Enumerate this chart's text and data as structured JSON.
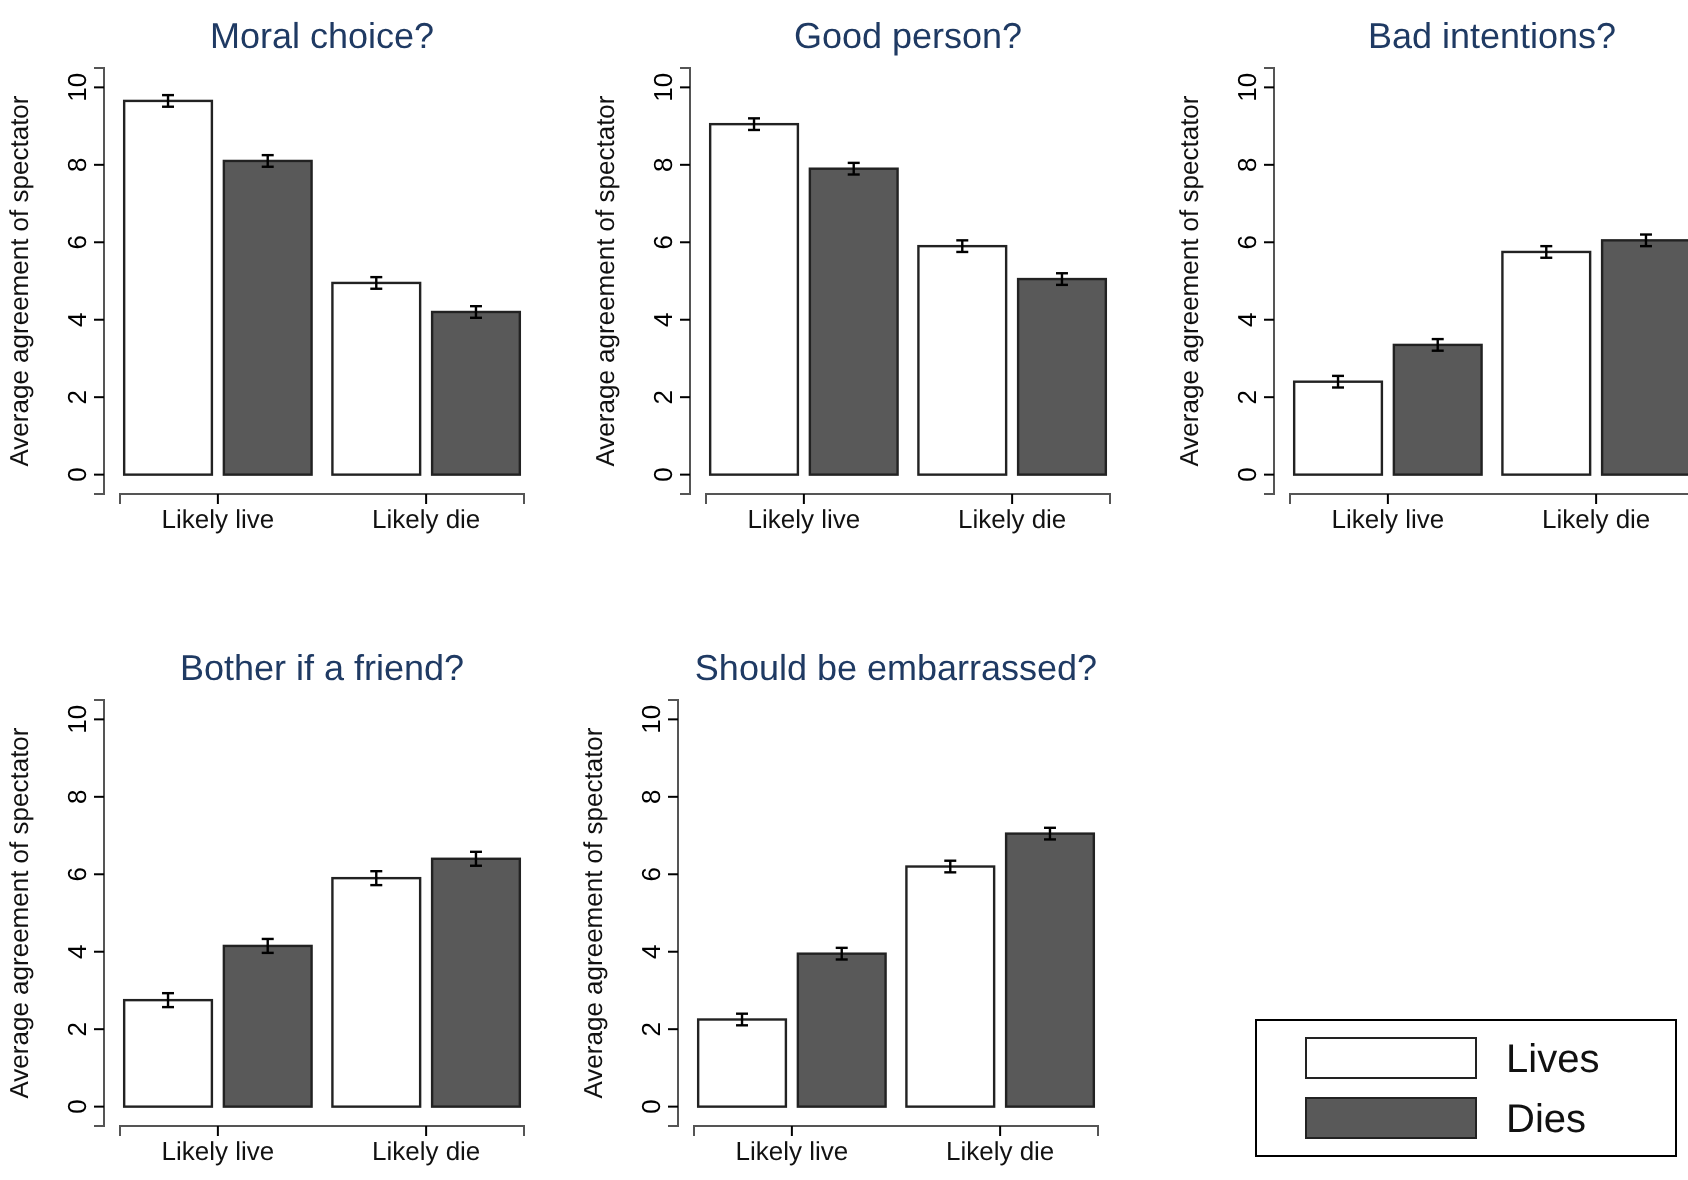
{
  "chart_data": [
    {
      "type": "bar",
      "title": "Moral choice?",
      "ylabel": "Average agreement of spectator",
      "categories": [
        "Likely live",
        "Likely die"
      ],
      "ylim": [
        -0.5,
        10.5
      ],
      "yticks": [
        0,
        2,
        4,
        6,
        8,
        10
      ],
      "series": [
        {
          "color": "#ffffff",
          "values": [
            9.65,
            4.95
          ],
          "errors": [
            0.15,
            0.15
          ]
        },
        {
          "color": "#595959",
          "values": [
            8.1,
            4.2
          ],
          "errors": [
            0.15,
            0.15
          ]
        }
      ]
    },
    {
      "type": "bar",
      "title": "Good person?",
      "ylabel": "Average agreement of spectator",
      "categories": [
        "Likely live",
        "Likely die"
      ],
      "ylim": [
        -0.5,
        10.5
      ],
      "yticks": [
        0,
        2,
        4,
        6,
        8,
        10
      ],
      "series": [
        {
          "color": "#ffffff",
          "values": [
            9.05,
            5.9
          ],
          "errors": [
            0.15,
            0.15
          ]
        },
        {
          "color": "#595959",
          "values": [
            7.9,
            5.05
          ],
          "errors": [
            0.15,
            0.15
          ]
        }
      ]
    },
    {
      "type": "bar",
      "title": "Bad intentions?",
      "ylabel": "Average agreement of spectator",
      "categories": [
        "Likely live",
        "Likely die"
      ],
      "ylim": [
        -0.5,
        10.5
      ],
      "yticks": [
        0,
        2,
        4,
        6,
        8,
        10
      ],
      "series": [
        {
          "color": "#ffffff",
          "values": [
            2.4,
            5.75
          ],
          "errors": [
            0.15,
            0.15
          ]
        },
        {
          "color": "#595959",
          "values": [
            3.35,
            6.05
          ],
          "errors": [
            0.15,
            0.15
          ]
        }
      ]
    },
    {
      "type": "bar",
      "title": "Bother if a friend?",
      "ylabel": "Average agreement of spectator",
      "categories": [
        "Likely live",
        "Likely die"
      ],
      "ylim": [
        -0.5,
        10.5
      ],
      "yticks": [
        0,
        2,
        4,
        6,
        8,
        10
      ],
      "series": [
        {
          "color": "#ffffff",
          "values": [
            2.75,
            5.9
          ],
          "errors": [
            0.18,
            0.18
          ]
        },
        {
          "color": "#595959",
          "values": [
            4.15,
            6.4
          ],
          "errors": [
            0.18,
            0.18
          ]
        }
      ]
    },
    {
      "type": "bar",
      "title": "Should be embarrassed?",
      "ylabel": "Average agreement of spectator",
      "categories": [
        "Likely live",
        "Likely die"
      ],
      "ylim": [
        -0.5,
        10.5
      ],
      "yticks": [
        0,
        2,
        4,
        6,
        8,
        10
      ],
      "legend": "right",
      "series": [
        {
          "name": "Lives",
          "color": "#ffffff",
          "values": [
            2.25,
            6.2
          ],
          "errors": [
            0.15,
            0.15
          ]
        },
        {
          "name": "Dies",
          "color": "#595959",
          "values": [
            3.95,
            7.05
          ],
          "errors": [
            0.15,
            0.15
          ]
        }
      ]
    }
  ]
}
